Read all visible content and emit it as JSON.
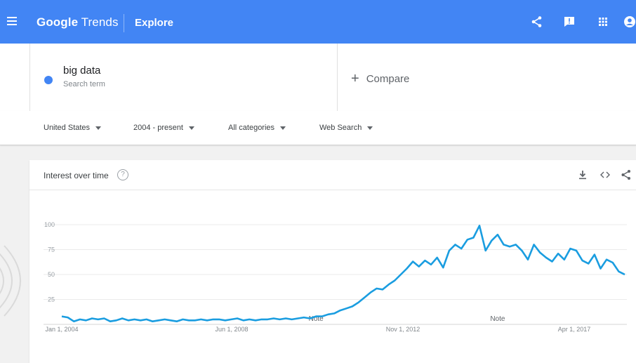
{
  "header": {
    "brand_main": "Google",
    "brand_sub": " Trends",
    "section": "Explore"
  },
  "search": {
    "term": "big data",
    "term_sub": "Search term",
    "term_color": "#4285f4",
    "compare_label": "Compare"
  },
  "filters": {
    "region": "United States",
    "time": "2004 - present",
    "category": "All categories",
    "property": "Web Search"
  },
  "card": {
    "title": "Interest over time",
    "help_glyph": "?"
  },
  "chart_data": {
    "type": "line",
    "series": [
      {
        "name": "big data",
        "color": "#1a9de0"
      }
    ],
    "x_tick_labels": [
      "Jan 1, 2004",
      "Jun 1, 2008",
      "Nov 1, 2012",
      "Apr 1, 2017"
    ],
    "y_ticks": [
      25,
      50,
      75,
      100
    ],
    "ylim": [
      0,
      100
    ],
    "notes": [
      {
        "label": "Note",
        "date": "2011-01"
      },
      {
        "label": "Note",
        "date": "2016-01"
      }
    ],
    "points": [
      [
        "2004-01",
        8
      ],
      [
        "2004-03",
        7
      ],
      [
        "2004-05",
        3
      ],
      [
        "2004-07",
        5
      ],
      [
        "2004-09",
        4
      ],
      [
        "2004-11",
        6
      ],
      [
        "2005-01",
        5
      ],
      [
        "2005-03",
        6
      ],
      [
        "2005-05",
        3
      ],
      [
        "2005-07",
        4
      ],
      [
        "2005-09",
        6
      ],
      [
        "2005-11",
        4
      ],
      [
        "2006-01",
        5
      ],
      [
        "2006-03",
        4
      ],
      [
        "2006-05",
        5
      ],
      [
        "2006-07",
        3
      ],
      [
        "2006-09",
        4
      ],
      [
        "2006-11",
        5
      ],
      [
        "2007-01",
        4
      ],
      [
        "2007-03",
        3
      ],
      [
        "2007-05",
        5
      ],
      [
        "2007-07",
        4
      ],
      [
        "2007-09",
        4
      ],
      [
        "2007-11",
        5
      ],
      [
        "2008-01",
        4
      ],
      [
        "2008-03",
        5
      ],
      [
        "2008-05",
        5
      ],
      [
        "2008-07",
        4
      ],
      [
        "2008-09",
        5
      ],
      [
        "2008-11",
        6
      ],
      [
        "2009-01",
        4
      ],
      [
        "2009-03",
        5
      ],
      [
        "2009-05",
        4
      ],
      [
        "2009-07",
        5
      ],
      [
        "2009-09",
        5
      ],
      [
        "2009-11",
        6
      ],
      [
        "2010-01",
        5
      ],
      [
        "2010-03",
        6
      ],
      [
        "2010-05",
        5
      ],
      [
        "2010-07",
        6
      ],
      [
        "2010-09",
        7
      ],
      [
        "2010-11",
        6
      ],
      [
        "2011-01",
        8
      ],
      [
        "2011-03",
        8
      ],
      [
        "2011-05",
        10
      ],
      [
        "2011-07",
        11
      ],
      [
        "2011-09",
        14
      ],
      [
        "2011-11",
        16
      ],
      [
        "2012-01",
        18
      ],
      [
        "2012-03",
        22
      ],
      [
        "2012-05",
        27
      ],
      [
        "2012-07",
        32
      ],
      [
        "2012-09",
        36
      ],
      [
        "2012-11",
        35
      ],
      [
        "2013-01",
        40
      ],
      [
        "2013-03",
        44
      ],
      [
        "2013-05",
        50
      ],
      [
        "2013-07",
        56
      ],
      [
        "2013-09",
        63
      ],
      [
        "2013-11",
        58
      ],
      [
        "2014-01",
        64
      ],
      [
        "2014-03",
        60
      ],
      [
        "2014-05",
        67
      ],
      [
        "2014-07",
        57
      ],
      [
        "2014-09",
        74
      ],
      [
        "2014-11",
        80
      ],
      [
        "2015-01",
        76
      ],
      [
        "2015-03",
        85
      ],
      [
        "2015-05",
        87
      ],
      [
        "2015-07",
        99
      ],
      [
        "2015-09",
        74
      ],
      [
        "2015-11",
        84
      ],
      [
        "2016-01",
        90
      ],
      [
        "2016-03",
        80
      ],
      [
        "2016-05",
        78
      ],
      [
        "2016-07",
        80
      ],
      [
        "2016-09",
        74
      ],
      [
        "2016-11",
        65
      ],
      [
        "2017-01",
        80
      ],
      [
        "2017-03",
        72
      ],
      [
        "2017-05",
        67
      ],
      [
        "2017-07",
        63
      ],
      [
        "2017-09",
        71
      ],
      [
        "2017-11",
        65
      ],
      [
        "2018-01",
        76
      ],
      [
        "2018-03",
        74
      ],
      [
        "2018-05",
        64
      ],
      [
        "2018-07",
        61
      ],
      [
        "2018-09",
        70
      ],
      [
        "2018-11",
        56
      ],
      [
        "2019-01",
        65
      ],
      [
        "2019-03",
        62
      ],
      [
        "2019-05",
        53
      ],
      [
        "2019-07",
        50
      ]
    ]
  }
}
